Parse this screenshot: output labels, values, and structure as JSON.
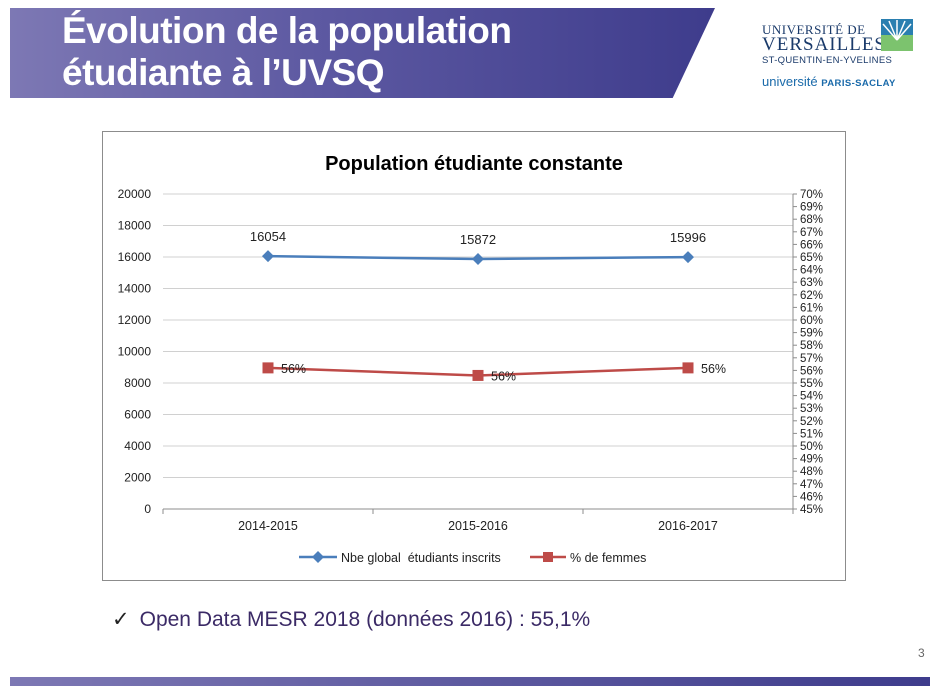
{
  "slide": {
    "title_line1": "Évolution de la population",
    "title_line2": "étudiante à l’UVSQ",
    "logo": {
      "line1": "UNIVERSITÉ DE",
      "line2": "VERSAILLES",
      "line3": "ST-QUENTIN-EN-YVELINES",
      "line4a": "université",
      "line4b": "PARIS-SACLAY"
    },
    "bullet_text": "Open Data MESR 2018 (données 2016) : 55,1%",
    "page_number": "3",
    "colors": {
      "banner": "#5c58a1",
      "series_students": "#4a7ebb",
      "series_women": "#be4b48"
    }
  },
  "chart_data": {
    "type": "line",
    "title": "Population étudiante constante",
    "categories": [
      "2014-2015",
      "2015-2016",
      "2016-2017"
    ],
    "y_left": {
      "min": 0,
      "max": 20000,
      "ticks": [
        "0",
        "2000",
        "4000",
        "6000",
        "8000",
        "10000",
        "12000",
        "14000",
        "16000",
        "18000",
        "20000"
      ]
    },
    "y_right": {
      "min": 45,
      "max": 70,
      "ticks": [
        "45%",
        "46%",
        "47%",
        "48%",
        "49%",
        "50%",
        "51%",
        "52%",
        "53%",
        "54%",
        "55%",
        "56%",
        "57%",
        "58%",
        "59%",
        "60%",
        "61%",
        "62%",
        "63%",
        "64%",
        "65%",
        "66%",
        "67%",
        "68%",
        "69%",
        "70%"
      ]
    },
    "series": [
      {
        "name": "Nbe global  étudiants inscrits",
        "axis": "left",
        "marker": "diamond",
        "color": "#4a7ebb",
        "values": [
          16054,
          15872,
          15996
        ],
        "labels": [
          "16054",
          "15872",
          "15996"
        ]
      },
      {
        "name": "% de femmes",
        "axis": "right",
        "marker": "square",
        "color": "#be4b48",
        "values": [
          56.2,
          55.6,
          56.2
        ],
        "labels": [
          "56%",
          "56%",
          "56%"
        ]
      }
    ],
    "grid": "horizontal",
    "legend": "bottom"
  }
}
